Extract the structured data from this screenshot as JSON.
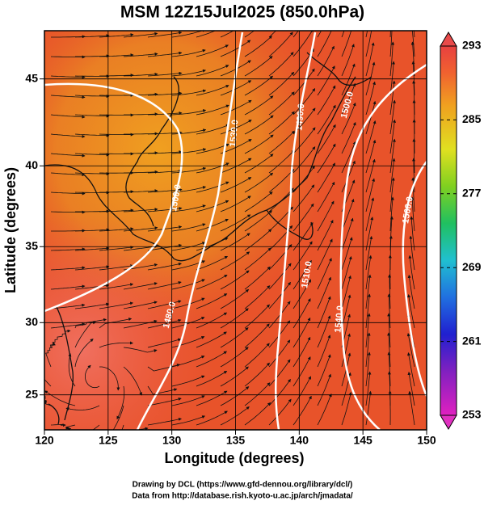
{
  "title": "MSM 12Z15Jul2025 (850.0hPa)",
  "x_axis": {
    "label": "Longitude (degrees)",
    "lim": [
      120,
      150
    ],
    "ticks": [
      120,
      125,
      130,
      135,
      140,
      145,
      150
    ]
  },
  "y_axis": {
    "label": "Latitude  (degrees)",
    "lim": [
      22.5,
      47.6
    ],
    "ticks": [
      25,
      30,
      35,
      40,
      45
    ],
    "projection": "mercator"
  },
  "colorbar": {
    "lim": [
      253,
      293
    ],
    "ticks": [
      253,
      261,
      269,
      277,
      285,
      293
    ]
  },
  "contour_labels": [
    "1500.0",
    "1530.0",
    "1480.0",
    "1490.0",
    "1510.0",
    "1540.0",
    "1560.0",
    "1500.0"
  ],
  "credits": [
    "Drawing by DCL (https://www.gfd-dennou.org/library/dcl/)",
    "Data from http://database.rish.kyoto-u.ac.jp/arch/jmadata/"
  ]
}
